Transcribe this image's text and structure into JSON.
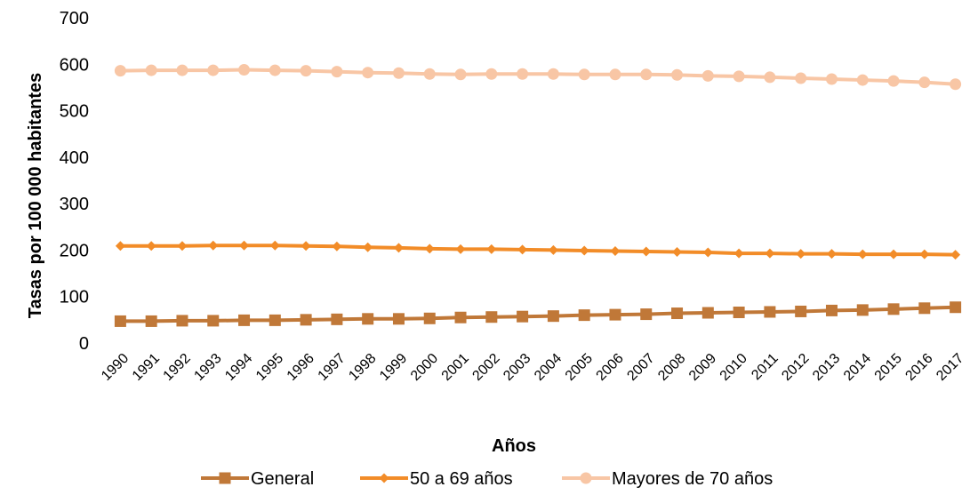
{
  "chart_data": {
    "type": "line",
    "title": "",
    "xlabel": "Años",
    "ylabel": "Tasas por 100 000 habitantes",
    "ylim": [
      0,
      700
    ],
    "yticks": [
      0,
      100,
      200,
      300,
      400,
      500,
      600,
      700
    ],
    "grid": false,
    "legend_position": "bottom",
    "categories": [
      "1990",
      "1991",
      "1992",
      "1993",
      "1994",
      "1995",
      "1996",
      "1997",
      "1998",
      "1999",
      "2000",
      "2001",
      "2002",
      "2003",
      "2004",
      "2005",
      "2006",
      "2007",
      "2008",
      "2009",
      "2010",
      "2011",
      "2012",
      "2013",
      "2014",
      "2015",
      "2016",
      "2017"
    ],
    "series": [
      {
        "name": "General",
        "color": "#C07838",
        "marker": "square",
        "values": [
          47,
          47,
          48,
          48,
          49,
          49,
          50,
          51,
          52,
          52,
          53,
          55,
          56,
          57,
          58,
          60,
          61,
          62,
          64,
          65,
          66,
          67,
          68,
          70,
          71,
          73,
          75,
          77
        ]
      },
      {
        "name": "50 a 69 años",
        "color": "#F28C28",
        "marker": "diamond",
        "values": [
          209,
          209,
          209,
          210,
          210,
          210,
          209,
          208,
          206,
          205,
          203,
          202,
          202,
          201,
          200,
          199,
          198,
          197,
          196,
          195,
          193,
          193,
          192,
          192,
          191,
          191,
          191,
          190
        ]
      },
      {
        "name": "Mayores de 70 años",
        "color": "#F8C6A5",
        "marker": "circle",
        "values": [
          586,
          587,
          587,
          587,
          588,
          587,
          586,
          584,
          582,
          581,
          579,
          578,
          579,
          579,
          579,
          578,
          578,
          578,
          577,
          575,
          574,
          572,
          570,
          568,
          566,
          564,
          561,
          557
        ]
      }
    ]
  }
}
